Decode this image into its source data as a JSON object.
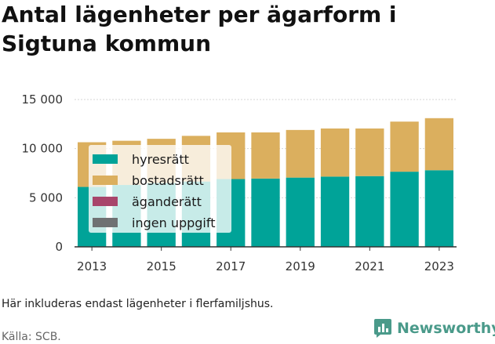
{
  "title": "Antal lägenheter per ägarform i Sigtuna kommun",
  "note": "Här inkluderas endast lägenheter i flerfamiljshus.",
  "source": "Källa: SCB.",
  "brand": "Newsworthy",
  "chart_data": {
    "type": "bar",
    "stacked": true,
    "categories": [
      "2013",
      "2014",
      "2015",
      "2016",
      "2017",
      "2018",
      "2019",
      "2020",
      "2021",
      "2022",
      "2023"
    ],
    "x_tick_labels": [
      "2013",
      "2015",
      "2017",
      "2019",
      "2021",
      "2023"
    ],
    "y_tick_labels": [
      "0",
      "5 000",
      "10 000",
      "15 000"
    ],
    "y_ticks": [
      0,
      5000,
      10000,
      15000
    ],
    "ylim": [
      0,
      15000
    ],
    "grid": true,
    "legend_position": "left",
    "series": [
      {
        "name": "hyresrätt",
        "color": "#00a398",
        "values": [
          6100,
          6300,
          6500,
          6650,
          6900,
          6950,
          7050,
          7150,
          7200,
          7650,
          7800
        ]
      },
      {
        "name": "bostadsrätt",
        "color": "#dbaf5e",
        "values": [
          4550,
          4500,
          4500,
          4650,
          4750,
          4700,
          4850,
          4900,
          4850,
          5100,
          5300
        ]
      },
      {
        "name": "äganderätt",
        "color": "#a8456b",
        "values": [
          0,
          0,
          0,
          0,
          0,
          0,
          0,
          0,
          0,
          0,
          0
        ]
      },
      {
        "name": "ingen uppgift",
        "color": "#6f7173",
        "values": [
          0,
          0,
          0,
          0,
          0,
          0,
          0,
          0,
          0,
          0,
          0
        ]
      }
    ]
  }
}
